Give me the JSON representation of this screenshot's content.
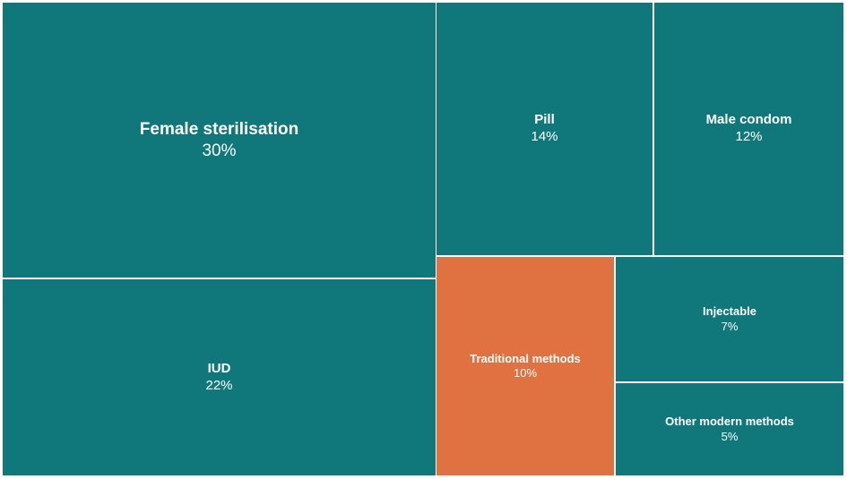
{
  "chart_data": {
    "type": "treemap",
    "items": [
      {
        "label": "Female sterilisation",
        "value": 30,
        "value_label": "30%",
        "color": "#10777b",
        "size": "large"
      },
      {
        "label": "Pill",
        "value": 14,
        "value_label": "14%",
        "color": "#10777b",
        "size": "medium"
      },
      {
        "label": "Male condom",
        "value": 12,
        "value_label": "12%",
        "color": "#10777b",
        "size": "medium"
      },
      {
        "label": "IUD",
        "value": 22,
        "value_label": "22%",
        "color": "#10777b",
        "size": "medium"
      },
      {
        "label": "Traditional methods",
        "value": 10,
        "value_label": "10%",
        "color": "#e07241",
        "size": "small"
      },
      {
        "label": "Injectable",
        "value": 7,
        "value_label": "7%",
        "color": "#10777b",
        "size": "small"
      },
      {
        "label": "Other modern methods",
        "value": 5,
        "value_label": "5%",
        "color": "#10777b",
        "size": "small"
      }
    ]
  }
}
